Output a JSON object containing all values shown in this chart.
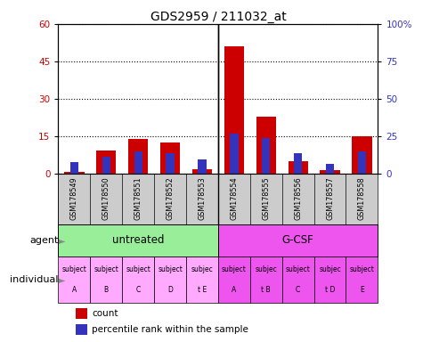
{
  "title": "GDS2959 / 211032_at",
  "samples": [
    "GSM178549",
    "GSM178550",
    "GSM178551",
    "GSM178552",
    "GSM178553",
    "GSM178554",
    "GSM178555",
    "GSM178556",
    "GSM178557",
    "GSM178558"
  ],
  "count_values": [
    1.0,
    9.5,
    14.0,
    12.5,
    2.0,
    51.0,
    23.0,
    5.0,
    1.5,
    15.0
  ],
  "percentile_values": [
    8.0,
    11.5,
    15.0,
    14.0,
    10.0,
    27.0,
    24.0,
    14.0,
    7.0,
    15.0
  ],
  "ylim_left": [
    0,
    60
  ],
  "ylim_right": [
    0,
    100
  ],
  "yticks_left": [
    0,
    15,
    30,
    45,
    60
  ],
  "yticks_right": [
    0,
    25,
    50,
    75,
    100
  ],
  "ytick_labels_left": [
    "0",
    "15",
    "30",
    "45",
    "60"
  ],
  "ytick_labels_right": [
    "0",
    "25",
    "50",
    "75",
    "100%"
  ],
  "count_color": "#cc0000",
  "percentile_color": "#3333bb",
  "agent_untreated": "untreated",
  "agent_gcsf": "G-CSF",
  "untreated_indices": [
    0,
    1,
    2,
    3,
    4
  ],
  "gcsf_indices": [
    5,
    6,
    7,
    8,
    9
  ],
  "individuals_line1": [
    "subject",
    "subject",
    "subject",
    "subject",
    "subjec",
    "subject",
    "subjec",
    "subject",
    "subjec",
    "subject"
  ],
  "individuals_line2": [
    "A",
    "B",
    "C",
    "D",
    "t E",
    "A",
    "t B",
    "C",
    "t D",
    "E"
  ],
  "agent_color_untreated": "#99ee99",
  "agent_color_gcsf": "#ee55ee",
  "individual_color_untreated": "#ffaaff",
  "individual_color_gcsf": "#ee55ee",
  "tick_row_color": "#cccccc",
  "left_label_color": "#555555",
  "arrow_color": "#888888"
}
